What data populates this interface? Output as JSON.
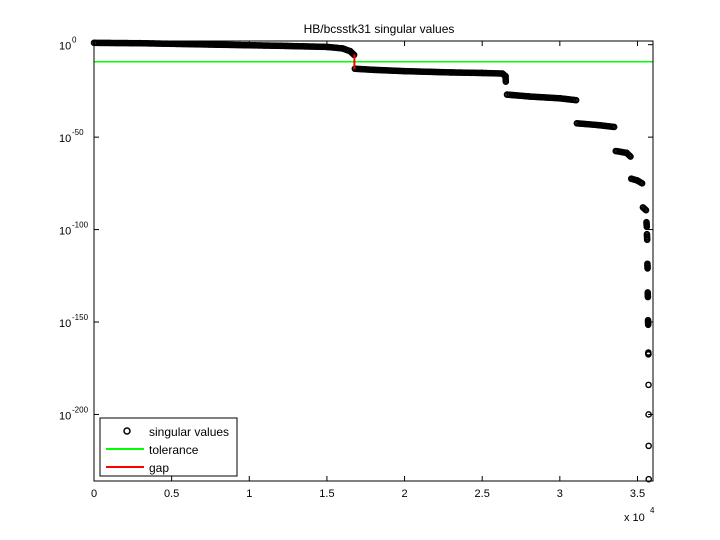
{
  "chart_data": {
    "type": "scatter",
    "title": "HB/bcsstk31 singular values",
    "xlabel": "",
    "ylabel": "",
    "x_multiplier_label": "x 10",
    "x_multiplier_exponent": "4",
    "xlim": [
      0,
      36000
    ],
    "ylim_log10": [
      -236,
      2
    ],
    "y_scale": "log",
    "grid": false,
    "legend_position": "bottom-left",
    "x_ticks": [
      {
        "value": 0,
        "label": "0"
      },
      {
        "value": 5000,
        "label": "0.5"
      },
      {
        "value": 10000,
        "label": "1"
      },
      {
        "value": 15000,
        "label": "1.5"
      },
      {
        "value": 20000,
        "label": "2"
      },
      {
        "value": 25000,
        "label": "2.5"
      },
      {
        "value": 30000,
        "label": "3"
      },
      {
        "value": 35000,
        "label": "3.5"
      }
    ],
    "y_ticks": [
      {
        "log10": 0,
        "base": "10",
        "exp": "0"
      },
      {
        "log10": -50,
        "base": "10",
        "exp": "-50"
      },
      {
        "log10": -100,
        "base": "10",
        "exp": "-100"
      },
      {
        "log10": -150,
        "base": "10",
        "exp": "-150"
      },
      {
        "log10": -200,
        "base": "10",
        "exp": "-200"
      }
    ],
    "series": [
      {
        "name": "singular values",
        "color": "#000000",
        "marker": "circle",
        "segments": [
          [
            [
              0,
              1.0
            ],
            [
              3000,
              0.8
            ],
            [
              8000,
              0.0
            ],
            [
              12000,
              -0.6
            ],
            [
              15000,
              -1.2
            ],
            [
              16000,
              -2.0
            ],
            [
              16500,
              -3.5
            ],
            [
              16750,
              -5.5
            ]
          ],
          [
            [
              16800,
              -13.0
            ],
            [
              18000,
              -13.6
            ],
            [
              20000,
              -14.3
            ],
            [
              23000,
              -15.0
            ],
            [
              25000,
              -15.3
            ],
            [
              26300,
              -15.6
            ],
            [
              26500,
              -17.0
            ],
            [
              26520,
              -20.0
            ]
          ],
          [
            [
              26600,
              -27.0
            ],
            [
              28000,
              -28.0
            ],
            [
              30000,
              -29.0
            ],
            [
              31050,
              -30.0
            ]
          ],
          [
            [
              31100,
              -42.5
            ],
            [
              32500,
              -43.5
            ],
            [
              33500,
              -44.5
            ]
          ],
          [
            [
              33600,
              -57.5
            ],
            [
              34300,
              -58.5
            ],
            [
              34550,
              -60.5
            ]
          ],
          [
            [
              34600,
              -72.5
            ],
            [
              35000,
              -73.5
            ],
            [
              35300,
              -75.0
            ]
          ],
          [
            [
              35350,
              -88.0
            ],
            [
              35550,
              -89.5
            ]
          ],
          [
            [
              35580,
              -96.0
            ],
            [
              35600,
              -98.5
            ]
          ],
          [
            [
              35610,
              -102.5
            ],
            [
              35625,
              -105.5
            ]
          ],
          [
            [
              35640,
              -118.5
            ],
            [
              35650,
              -121.0
            ]
          ],
          [
            [
              35660,
              -134.0
            ],
            [
              35670,
              -136.5
            ]
          ],
          [
            [
              35680,
              -149.0
            ],
            [
              35690,
              -151.5
            ]
          ],
          [
            [
              35700,
              -166.5
            ],
            [
              35705,
              -167.5
            ]
          ]
        ],
        "isolated": [
          [
            35712,
            -184.0
          ],
          [
            35716,
            -200.0
          ],
          [
            35720,
            -217.0
          ],
          [
            35725,
            -235.0
          ]
        ]
      },
      {
        "name": "tolerance",
        "color": "#00ff00",
        "points": [
          [
            0,
            -9.2
          ],
          [
            36000,
            -9.2
          ]
        ]
      },
      {
        "name": "gap",
        "color": "#ff0000",
        "points": [
          [
            16770,
            -5.2
          ],
          [
            16770,
            -13.0
          ]
        ]
      }
    ]
  }
}
